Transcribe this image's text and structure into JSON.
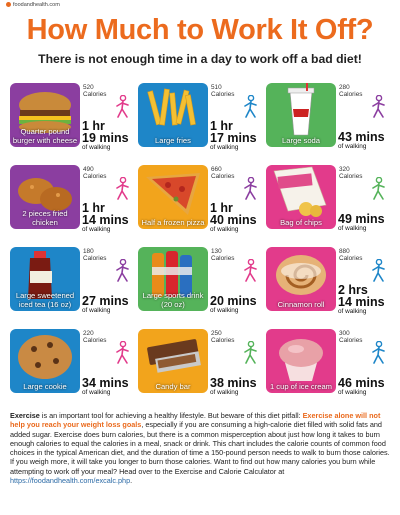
{
  "brand": {
    "text": "foodandhealth.com"
  },
  "title": "How Much to Work It Off?",
  "subtitle": "There is not enough time in a day to work off a bad diet!",
  "calories_word": "Calories",
  "walking_word": "of walking",
  "colors": {
    "orange": "#ec6b1e",
    "purple": "#8b3ea0",
    "green": "#55b35a",
    "blue": "#1e86c8",
    "pink": "#e23b8b",
    "yellow": "#f2a41c"
  },
  "items": [
    {
      "label": "Quarter pound burger with cheese",
      "calories": "520",
      "hours": "1 hr",
      "mins": "19 mins",
      "tile": "#8b3ea0",
      "walker": "#e23b8b"
    },
    {
      "label": "Large fries",
      "calories": "510",
      "hours": "1 hr",
      "mins": "17 mins",
      "tile": "#1e86c8",
      "walker": "#1e86c8"
    },
    {
      "label": "Large soda",
      "calories": "280",
      "hours": "",
      "mins": "43 mins",
      "tile": "#55b35a",
      "walker": "#8b3ea0"
    },
    {
      "label": "2 pieces fried chicken",
      "calories": "490",
      "hours": "1 hr",
      "mins": "14 mins",
      "tile": "#8b3ea0",
      "walker": "#e23b8b"
    },
    {
      "label": "Half a frozen pizza",
      "calories": "660",
      "hours": "1 hr",
      "mins": "40 mins",
      "tile": "#f2a41c",
      "walker": "#8b3ea0"
    },
    {
      "label": "Bag of chips",
      "calories": "320",
      "hours": "",
      "mins": "49 mins",
      "tile": "#e23b8b",
      "walker": "#55b35a"
    },
    {
      "label": "Large sweetened iced tea (16 oz)",
      "calories": "180",
      "hours": "",
      "mins": "27 mins",
      "tile": "#1e86c8",
      "walker": "#8b3ea0"
    },
    {
      "label": "Large sports drink (20 oz)",
      "calories": "130",
      "hours": "",
      "mins": "20 mins",
      "tile": "#55b35a",
      "walker": "#e23b8b"
    },
    {
      "label": "Cinnamon roll",
      "calories": "880",
      "hours": "2 hrs",
      "mins": "14 mins",
      "tile": "#e23b8b",
      "walker": "#1e86c8"
    },
    {
      "label": "Large cookie",
      "calories": "220",
      "hours": "",
      "mins": "34 mins",
      "tile": "#1e86c8",
      "walker": "#e23b8b"
    },
    {
      "label": "Candy bar",
      "calories": "250",
      "hours": "",
      "mins": "38 mins",
      "tile": "#f2a41c",
      "walker": "#55b35a"
    },
    {
      "label": "1 cup of ice cream",
      "calories": "300",
      "hours": "",
      "mins": "46 mins",
      "tile": "#e23b8b",
      "walker": "#1e86c8"
    }
  ],
  "footer": {
    "lead": "Exercise",
    "p1": " is an important tool for achieving a healthy lifestyle. But beware of this diet pitfall: ",
    "highlight": "Exercise alone will not help you reach your weight loss goals",
    "p2": ", especially if you are consuming a high-calorie diet filled with solid fats and added sugar. Exercise does burn calories, but there is a common misperception about just how long it takes to burn enough calories to equal the calories in a meal, snack or drink. This chart includes the calorie counts of common food choices in the typical American diet, and the duration of time a 150-pound person needs to walk to burn those calories.  If you weigh more, it will take you longer to burn those calories. Want to find out how many calories you burn while attempting to work off your meal?  Head over to the Exercise and Calorie Calculator at ",
    "url": "https://foodandhealth.com/excalc.php",
    "end": "."
  }
}
